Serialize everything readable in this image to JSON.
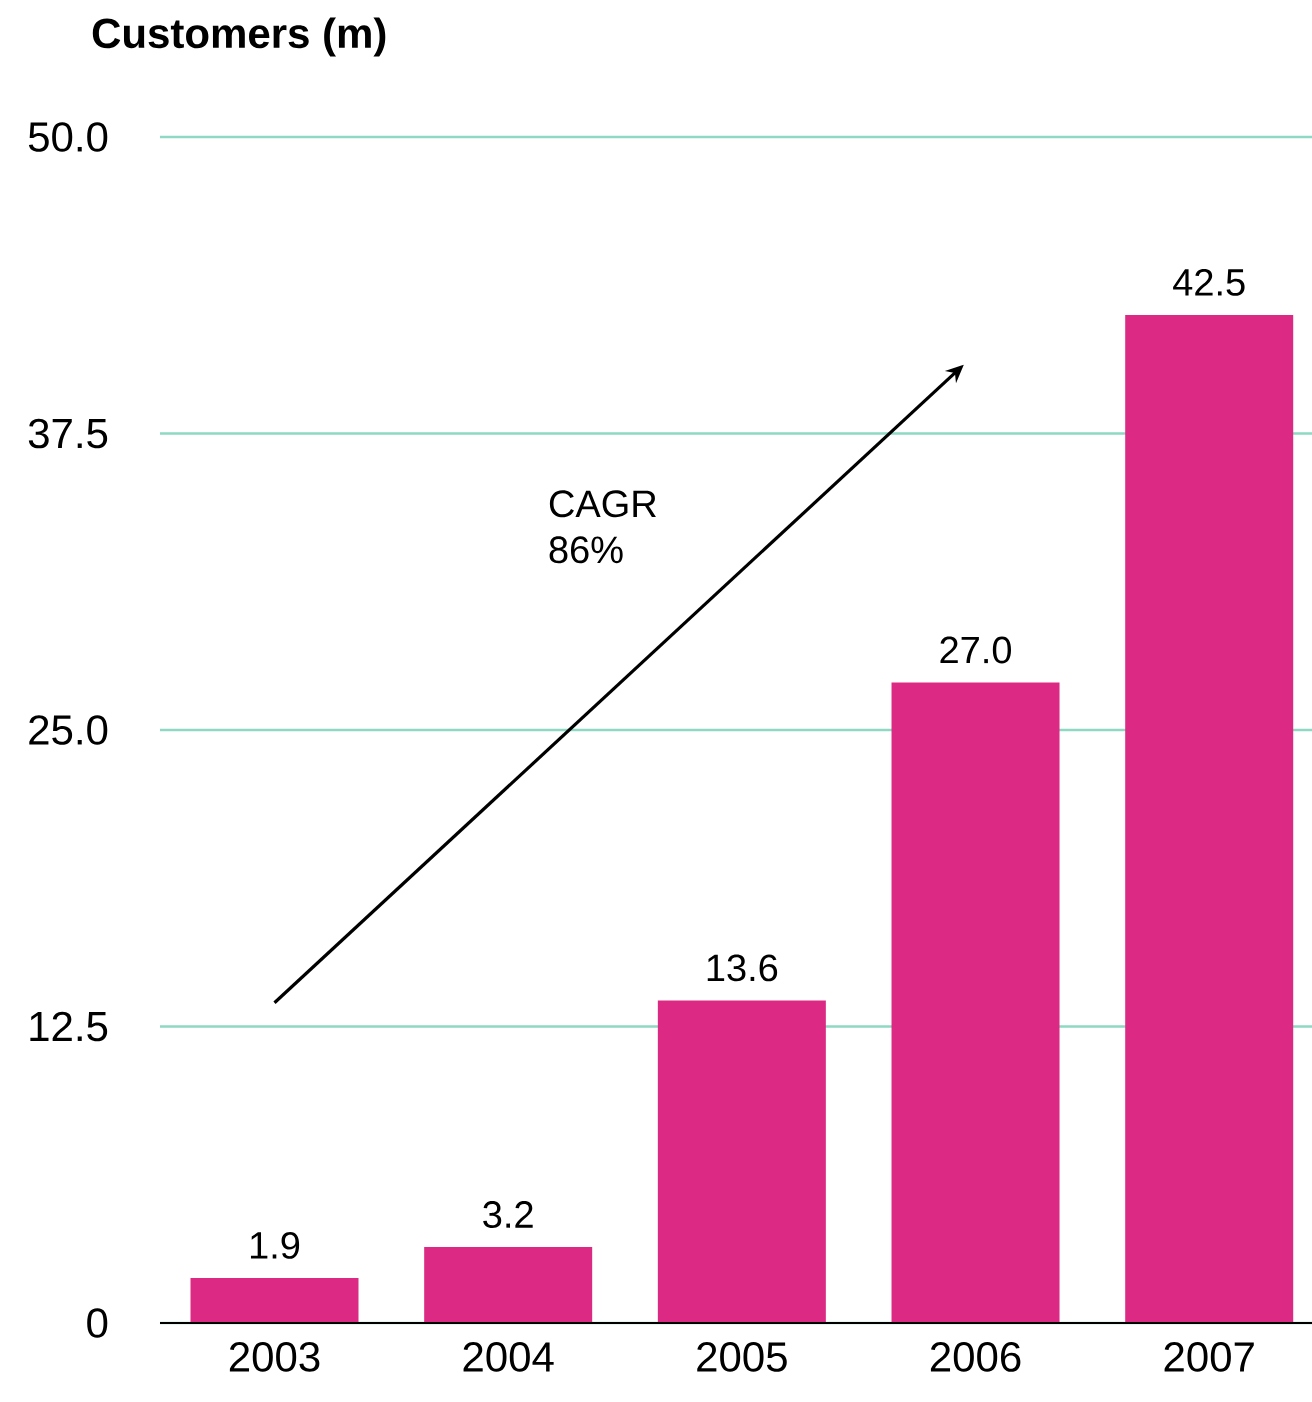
{
  "chart_data": {
    "type": "bar",
    "ylabel": "Customers (m)",
    "categories": [
      "2003",
      "2004",
      "2005",
      "2006",
      "2007"
    ],
    "values": [
      1.9,
      3.2,
      13.6,
      27.0,
      42.5
    ],
    "color": "#dc2a84",
    "ylim": [
      0,
      50
    ],
    "yticks": [
      0,
      12.5,
      {
        "value": 25,
        "label": "25.0"
      },
      37.5,
      {
        "value": 50,
        "label": "50.0"
      }
    ],
    "grid": "y",
    "value_labels": [
      "1.9",
      "3.2",
      "13.6",
      "27.0",
      "42.5"
    ],
    "annotations": [
      "CAGR",
      "86%"
    ]
  }
}
